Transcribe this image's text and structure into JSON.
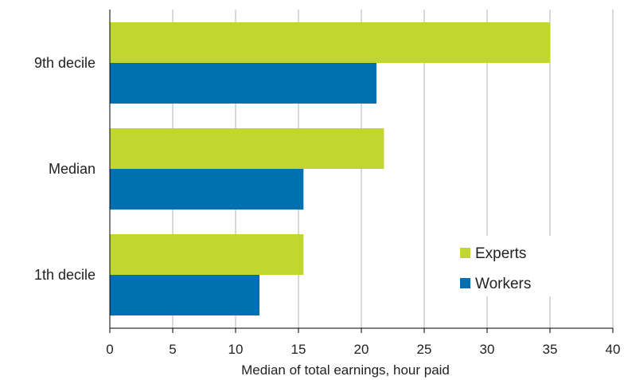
{
  "chart_data": {
    "type": "bar",
    "orientation": "horizontal",
    "categories": [
      "9th decile",
      "Median",
      "1th decile"
    ],
    "series": [
      {
        "name": "Experts",
        "color": "#c2d632",
        "values": [
          35,
          21.8,
          15.4
        ]
      },
      {
        "name": "Workers",
        "color": "#0070b0",
        "values": [
          21.2,
          15.4,
          11.9
        ]
      }
    ],
    "xlabel": "Median of total earnings, hour paid",
    "xlim": [
      0,
      40
    ],
    "xticks": [
      0,
      5,
      10,
      15,
      20,
      25,
      30,
      35,
      40
    ],
    "grid": "vertical",
    "legend_position": "bottom-right"
  }
}
